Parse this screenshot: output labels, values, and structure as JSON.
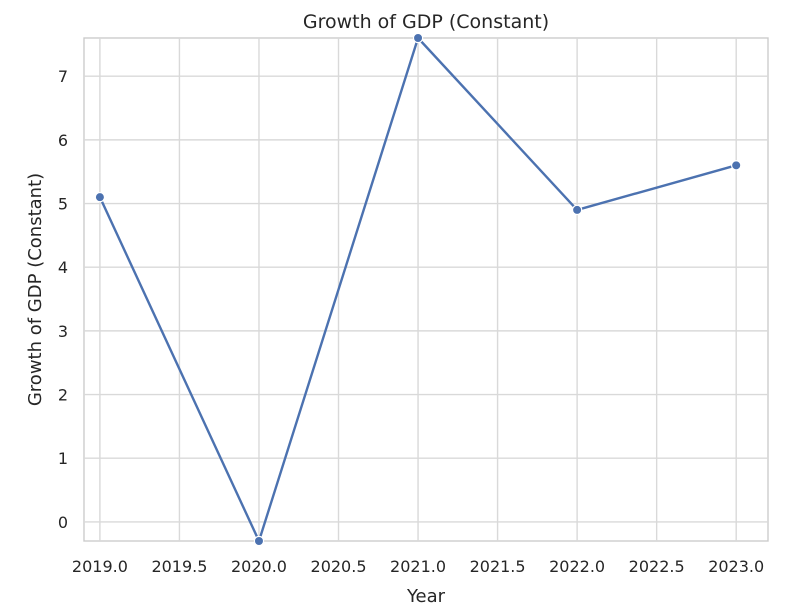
{
  "chart_data": {
    "type": "line",
    "title": "Growth of GDP (Constant)",
    "xlabel": "Year",
    "ylabel": "Growth of GDP (Constant)",
    "xlim": [
      2018.9,
      2023.2
    ],
    "ylim": [
      -0.3,
      7.6
    ],
    "x_ticks": [
      2019.0,
      2019.5,
      2020.0,
      2020.5,
      2021.0,
      2021.5,
      2022.0,
      2022.5,
      2023.0
    ],
    "x_tick_labels": [
      "2019.0",
      "2019.5",
      "2020.0",
      "2020.5",
      "2021.0",
      "2021.5",
      "2022.0",
      "2022.5",
      "2023.0"
    ],
    "y_ticks": [
      0,
      1,
      2,
      3,
      4,
      5,
      6,
      7
    ],
    "y_tick_labels": [
      "0",
      "1",
      "2",
      "3",
      "4",
      "5",
      "6",
      "7"
    ],
    "grid": true,
    "series": [
      {
        "x": [
          2019,
          2020,
          2021,
          2022,
          2023
        ],
        "y": [
          5.1,
          -0.3,
          7.6,
          4.9,
          5.6
        ],
        "color": "#4c72b0",
        "marker": "circle"
      }
    ]
  }
}
